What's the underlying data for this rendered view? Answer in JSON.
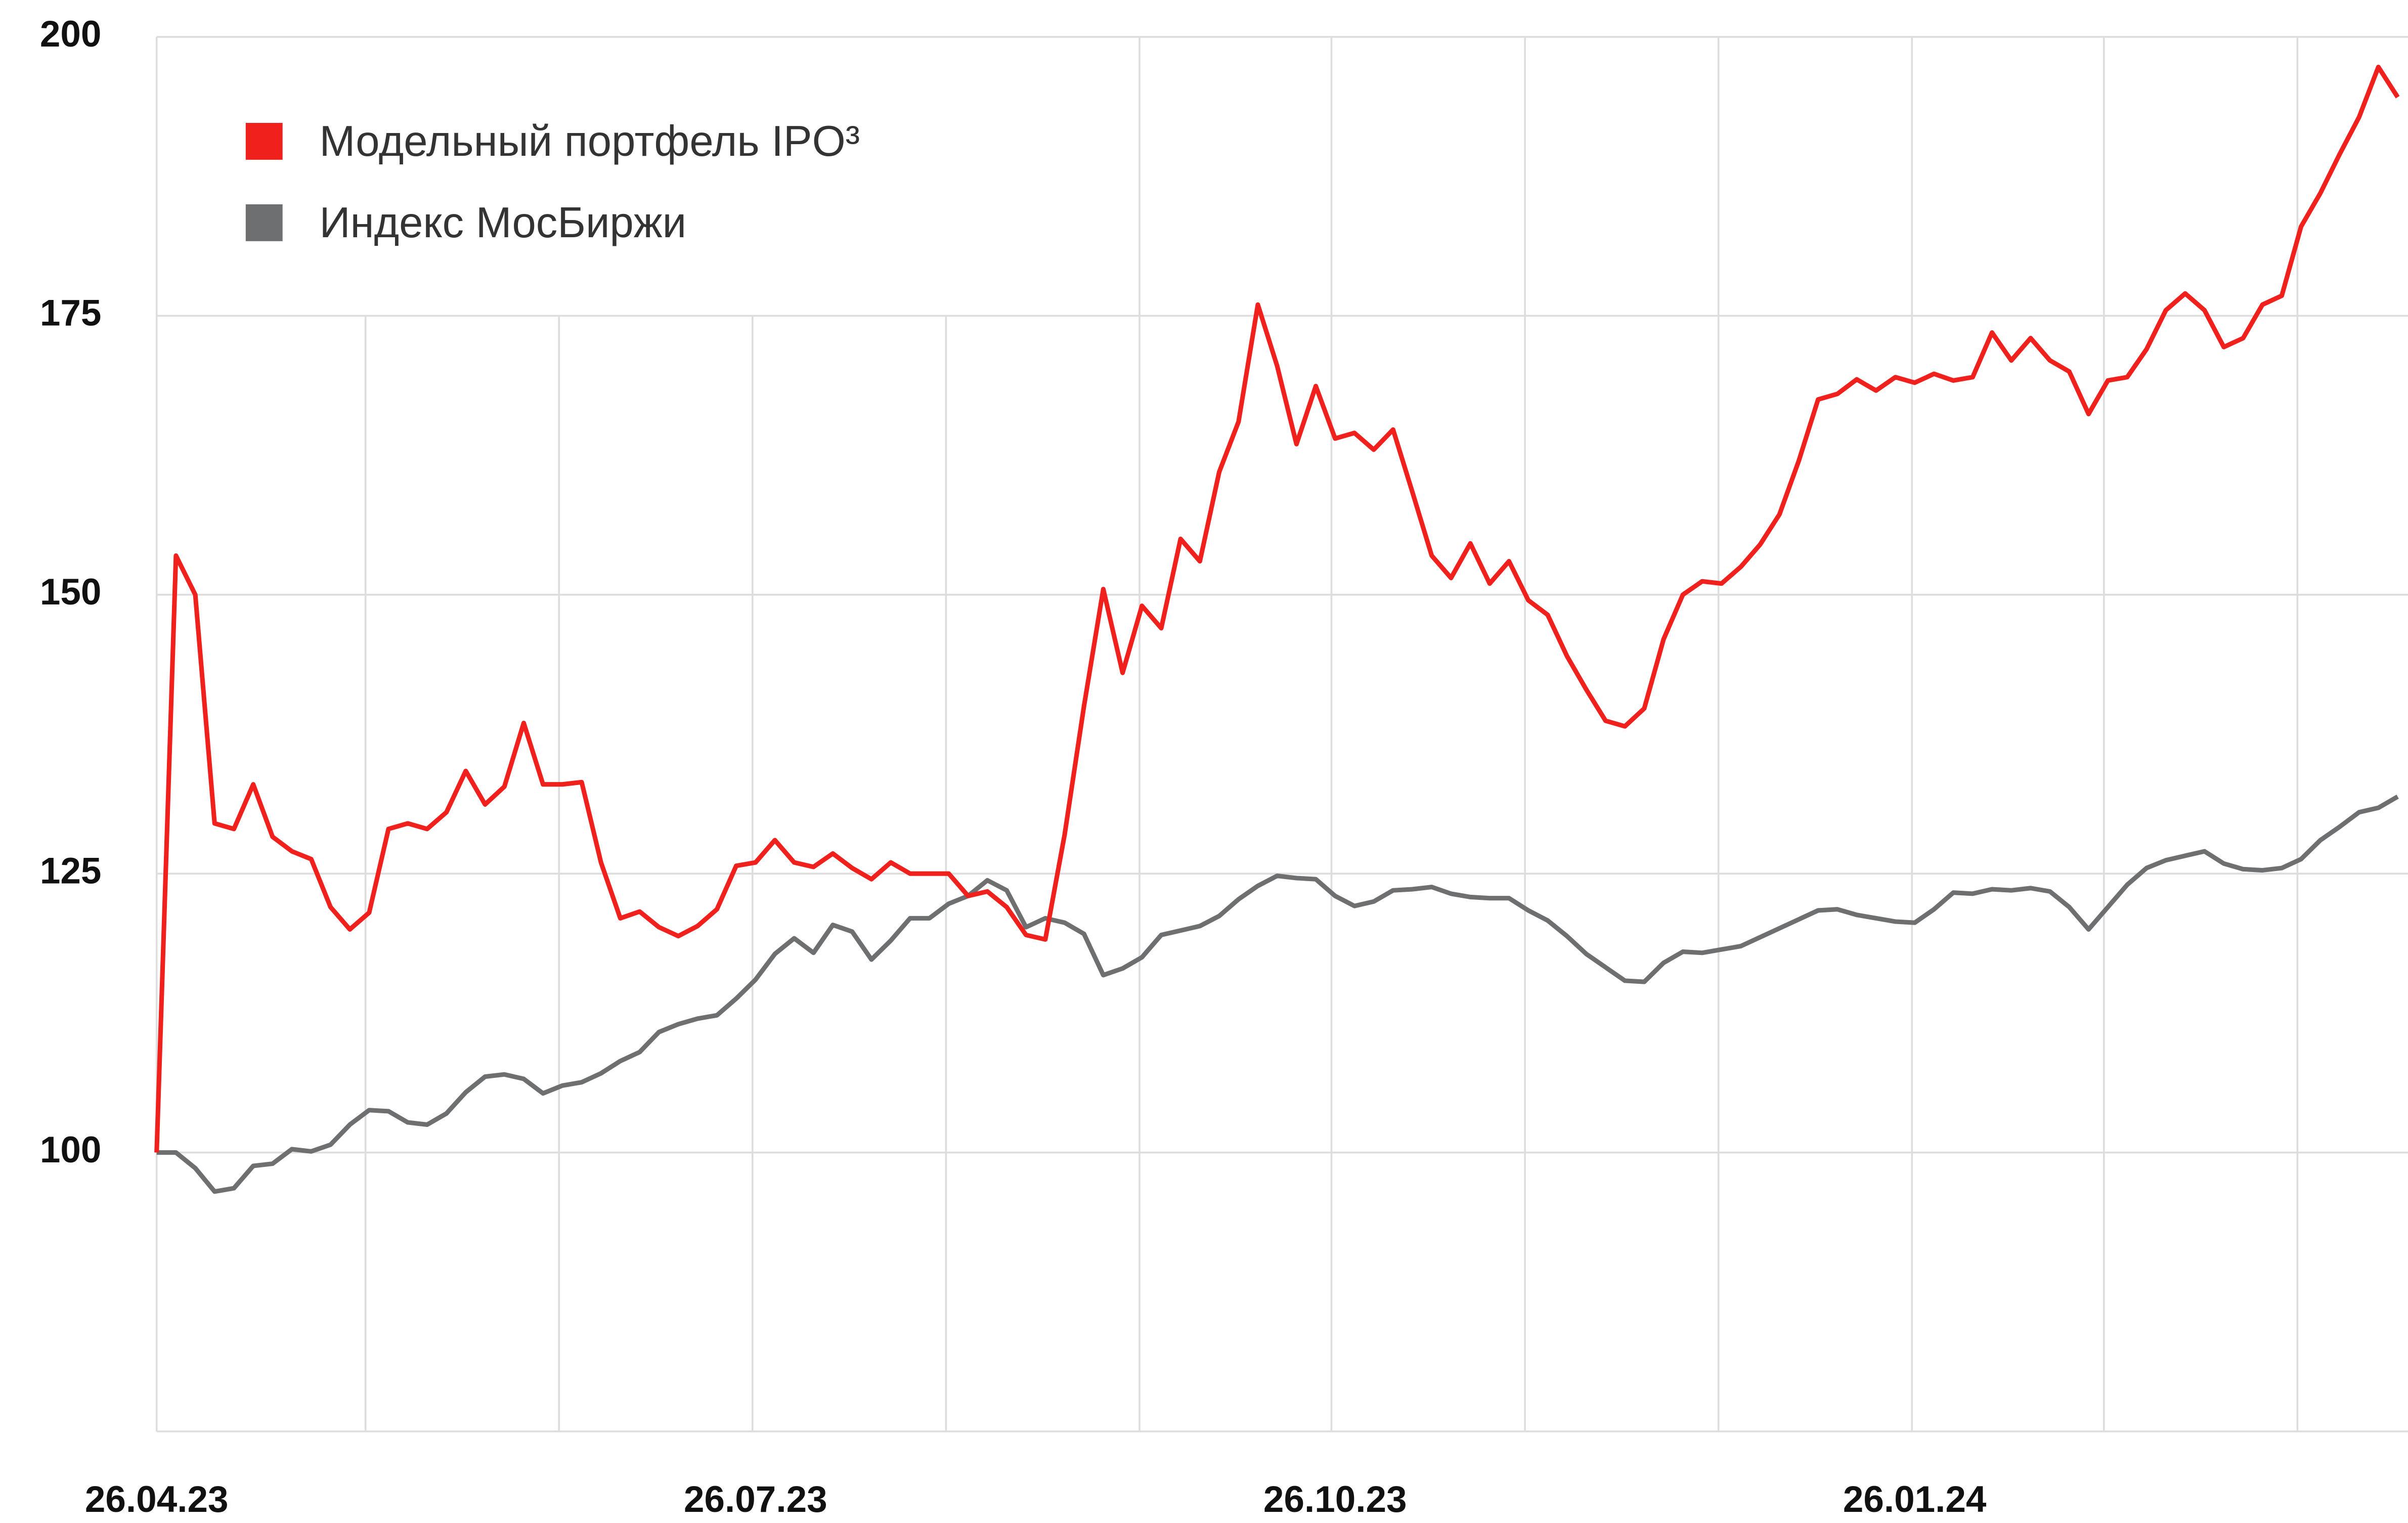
{
  "chart_data": {
    "type": "line",
    "categories": [
      "26.04.23",
      null,
      null,
      null,
      null,
      null,
      null,
      null,
      null,
      null,
      null,
      null,
      null,
      null,
      null,
      null,
      null,
      null,
      null,
      null,
      null,
      null,
      null,
      null,
      null,
      null,
      null,
      null,
      null,
      null,
      null,
      "26.07.23",
      null,
      null,
      null,
      null,
      null,
      null,
      null,
      null,
      null,
      null,
      null,
      null,
      null,
      null,
      null,
      null,
      null,
      null,
      null,
      null,
      null,
      null,
      null,
      null,
      null,
      null,
      null,
      null,
      null,
      "26.10.23",
      null,
      null,
      null,
      null,
      null,
      null,
      null,
      null,
      null,
      null,
      null,
      null,
      null,
      null,
      null,
      null,
      null,
      null,
      null,
      null,
      null,
      null,
      null,
      null,
      null,
      null,
      null,
      null,
      null,
      "26.01.24",
      null,
      null,
      null,
      null,
      null,
      null,
      null,
      null,
      null,
      null,
      null,
      null,
      null,
      null,
      null,
      null,
      null,
      null,
      null,
      null,
      null,
      null,
      null,
      null,
      null
    ],
    "series": [
      {
        "name": "Модельный портфель IPO³",
        "color": "#f0201c",
        "values": [
          100,
          153.5,
          150,
          129.5,
          129,
          133,
          128.3,
          127,
          126.3,
          122,
          120,
          121.5,
          129,
          129.5,
          129,
          130.5,
          134.2,
          131.2,
          132.8,
          138.5,
          133,
          133,
          133.2,
          126,
          121,
          121.6,
          120.2,
          119.4,
          120.3,
          121.8,
          125.7,
          126,
          128,
          126,
          125.6,
          126.8,
          125.5,
          124.5,
          126,
          125,
          125,
          125,
          123,
          123.4,
          122,
          119.5,
          119.1,
          128.5,
          140,
          150.5,
          143,
          149,
          147,
          155,
          153,
          161,
          165.5,
          176,
          170.5,
          163.5,
          168.7,
          164,
          164.5,
          163,
          164.8,
          159.2,
          153.5,
          151.5,
          154.6,
          151,
          153,
          149.5,
          148.2,
          144.5,
          141.5,
          138.7,
          138.2,
          139.8,
          146,
          150,
          151.2,
          151,
          152.5,
          154.5,
          157.2,
          162,
          167.5,
          168,
          169.3,
          168.3,
          169.5,
          169,
          169.8,
          169.2,
          169.5,
          173.5,
          171,
          173,
          171,
          170,
          166.2,
          169.2,
          169.5,
          172,
          175.5,
          177,
          175.5,
          172.2,
          173,
          176,
          176.8,
          183,
          186,
          189.5,
          192.8,
          197.3,
          194.6
        ]
      },
      {
        "name": "Индекс МосБиржи",
        "color": "#6e6f70",
        "values": [
          100,
          100,
          98.6,
          96.5,
          96.8,
          98.8,
          99,
          100.3,
          100.1,
          100.7,
          102.5,
          103.8,
          103.7,
          102.7,
          102.5,
          103.5,
          105.4,
          106.8,
          107,
          106.6,
          105.3,
          106,
          106.3,
          107.1,
          108.2,
          109,
          110.8,
          111.5,
          112,
          112.3,
          113.8,
          115.5,
          117.8,
          119.2,
          117.9,
          120.4,
          119.8,
          117.3,
          119,
          121,
          121,
          122.3,
          123,
          124.4,
          123.5,
          120.2,
          121,
          120.6,
          119.6,
          115.9,
          116.5,
          117.5,
          119.5,
          119.9,
          120.3,
          121.2,
          122.7,
          123.9,
          124.8,
          124.6,
          124.5,
          123,
          122.1,
          122.5,
          123.5,
          123.6,
          123.8,
          123.2,
          122.9,
          122.8,
          122.8,
          121.7,
          120.8,
          119.4,
          117.8,
          116.6,
          115.4,
          115.3,
          117,
          118,
          117.9,
          118.2,
          118.5,
          119.3,
          120.1,
          120.9,
          121.7,
          121.8,
          121.3,
          121,
          120.7,
          120.6,
          121.8,
          123.3,
          123.2,
          123.6,
          123.5,
          123.7,
          123.4,
          122,
          120,
          122,
          124,
          125.5,
          126.2,
          126.6,
          127,
          125.9,
          125.4,
          125.3,
          125.5,
          126.3,
          128,
          129.2,
          130.5,
          130.9,
          131.9
        ]
      }
    ],
    "ylim": [
      75,
      200
    ],
    "yticks": [
      100,
      125,
      150,
      175,
      200
    ],
    "grid": true,
    "legend": "upper left"
  }
}
